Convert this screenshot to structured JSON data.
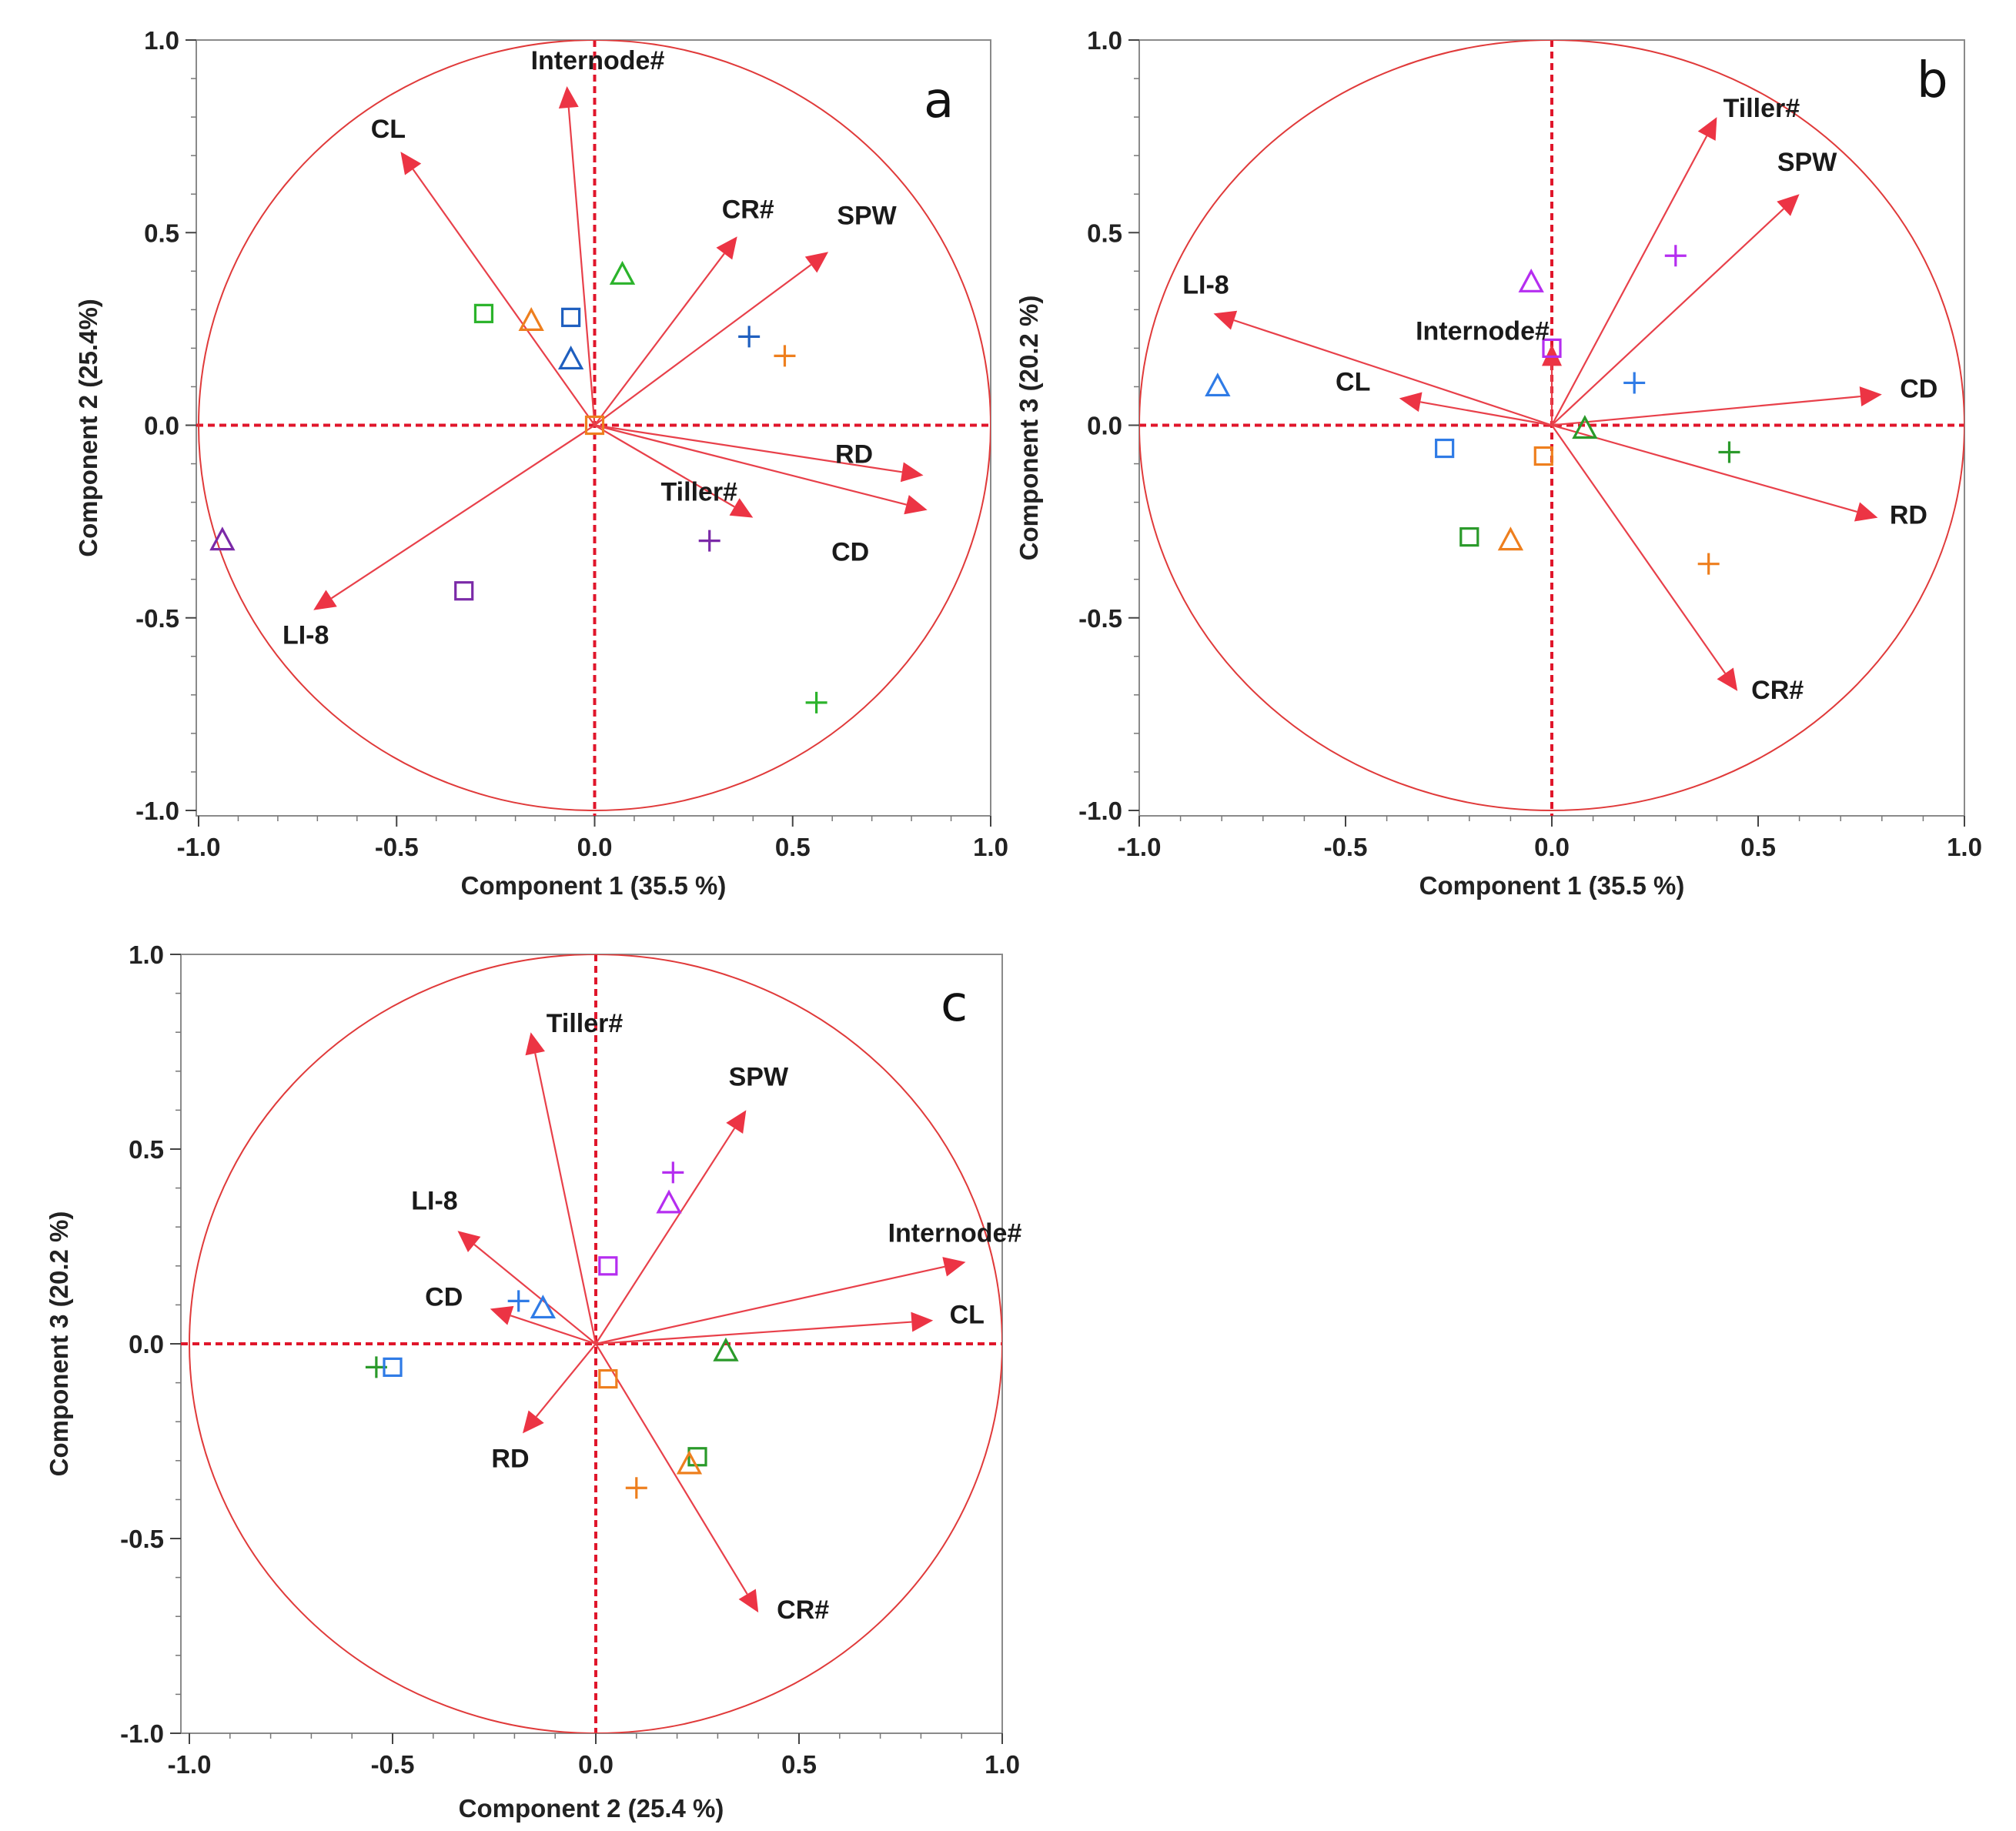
{
  "figure": {
    "panels": [
      {
        "id": "a",
        "letter": "a",
        "xlabel": "Component 1  (35.5 %)",
        "ylabel": "Component 2  (25.4%)",
        "xticks": [
          "-1.0",
          "-0.5",
          "0.0",
          "0.5",
          "1.0"
        ],
        "yticks": [
          "-1.0",
          "-0.5",
          "0.0",
          "0.5",
          "1.0"
        ]
      },
      {
        "id": "b",
        "letter": "b",
        "xlabel": "Component 1  (35.5 %)",
        "ylabel": "Component 3  (20.2 %)",
        "xticks": [
          "-1.0",
          "-0.5",
          "0.0",
          "0.5",
          "1.0"
        ],
        "yticks": [
          "-1.0",
          "-0.5",
          "0.0",
          "0.5",
          "1.0"
        ]
      },
      {
        "id": "c",
        "letter": "c",
        "xlabel": "Component 2  (25.4 %)",
        "ylabel": "Component 3  (20.2 %)",
        "xticks": [
          "-1.0",
          "-0.5",
          "0.0",
          "0.5",
          "1.0"
        ],
        "yticks": [
          "-1.0",
          "-0.5",
          "0.0",
          "0.5",
          "1.0"
        ]
      }
    ]
  },
  "chart_data": [
    {
      "type": "scatter",
      "panel": "a",
      "title": "a",
      "xlabel": "Component 1  (35.5 %)",
      "ylabel": "Component 2  (25.4%)",
      "xlim": [
        -1.0,
        1.0
      ],
      "ylim": [
        -1.0,
        1.0
      ],
      "unit_circle": true,
      "loadings": [
        {
          "label": "Internode#",
          "x": -0.07,
          "y": 0.88
        },
        {
          "label": "CL",
          "x": -0.49,
          "y": 0.71
        },
        {
          "label": "CR#",
          "x": 0.36,
          "y": 0.49
        },
        {
          "label": "SPW",
          "x": 0.59,
          "y": 0.45
        },
        {
          "label": "RD",
          "x": 0.83,
          "y": -0.13
        },
        {
          "label": "CD",
          "x": 0.84,
          "y": -0.22
        },
        {
          "label": "Tiller#",
          "x": 0.4,
          "y": -0.24
        },
        {
          "label": "LI-8",
          "x": -0.71,
          "y": -0.48
        }
      ],
      "scores": [
        {
          "marker": "square",
          "color": "#2bb32b",
          "x": -0.28,
          "y": 0.29
        },
        {
          "marker": "triangle",
          "color": "#ee7f1e",
          "x": -0.16,
          "y": 0.27
        },
        {
          "marker": "square",
          "color": "#1f5fbf",
          "x": -0.06,
          "y": 0.28
        },
        {
          "marker": "triangle",
          "color": "#1f5fbf",
          "x": -0.06,
          "y": 0.17
        },
        {
          "marker": "triangle",
          "color": "#2bb32b",
          "x": 0.07,
          "y": 0.39
        },
        {
          "marker": "square",
          "color": "#ee7f1e",
          "x": 0.0,
          "y": 0.0
        },
        {
          "marker": "plus",
          "color": "#1f5fbf",
          "x": 0.39,
          "y": 0.23
        },
        {
          "marker": "plus",
          "color": "#ee7f1e",
          "x": 0.48,
          "y": 0.18
        },
        {
          "marker": "plus",
          "color": "#7b2aa8",
          "x": 0.29,
          "y": -0.3
        },
        {
          "marker": "square",
          "color": "#7b2aa8",
          "x": -0.33,
          "y": -0.43
        },
        {
          "marker": "triangle",
          "color": "#7b2aa8",
          "x": -0.94,
          "y": -0.3
        },
        {
          "marker": "plus",
          "color": "#2bb32b",
          "x": 0.56,
          "y": -0.72
        }
      ]
    },
    {
      "type": "scatter",
      "panel": "b",
      "title": "b",
      "xlabel": "Component 1  (35.5 %)",
      "ylabel": "Component 3  (20.2 %)",
      "xlim": [
        -1.0,
        1.0
      ],
      "ylim": [
        -1.0,
        1.0
      ],
      "unit_circle": true,
      "loadings": [
        {
          "label": "Tiller#",
          "x": 0.4,
          "y": 0.8
        },
        {
          "label": "SPW",
          "x": 0.6,
          "y": 0.6
        },
        {
          "label": "LI-8",
          "x": -0.82,
          "y": 0.29
        },
        {
          "label": "Internode#",
          "x": 0.0,
          "y": 0.21
        },
        {
          "label": "CL",
          "x": -0.37,
          "y": 0.07
        },
        {
          "label": "CD",
          "x": 0.8,
          "y": 0.08
        },
        {
          "label": "RD",
          "x": 0.79,
          "y": -0.24
        },
        {
          "label": "CR#",
          "x": 0.45,
          "y": -0.69
        }
      ],
      "scores": [
        {
          "marker": "triangle",
          "color": "#b52ef0",
          "x": -0.05,
          "y": 0.37
        },
        {
          "marker": "plus",
          "color": "#b52ef0",
          "x": 0.3,
          "y": 0.44
        },
        {
          "marker": "square",
          "color": "#b52ef0",
          "x": 0.0,
          "y": 0.2
        },
        {
          "marker": "triangle",
          "color": "#2f7be6",
          "x": -0.81,
          "y": 0.1
        },
        {
          "marker": "plus",
          "color": "#2f7be6",
          "x": 0.2,
          "y": 0.11
        },
        {
          "marker": "square",
          "color": "#2f7be6",
          "x": -0.26,
          "y": -0.06
        },
        {
          "marker": "square",
          "color": "#ee7f1e",
          "x": -0.02,
          "y": -0.08
        },
        {
          "marker": "triangle",
          "color": "#2a9a2a",
          "x": 0.08,
          "y": -0.01
        },
        {
          "marker": "plus",
          "color": "#2a9a2a",
          "x": 0.43,
          "y": -0.07
        },
        {
          "marker": "square",
          "color": "#2a9a2a",
          "x": -0.2,
          "y": -0.29
        },
        {
          "marker": "triangle",
          "color": "#ee7f1e",
          "x": -0.1,
          "y": -0.3
        },
        {
          "marker": "plus",
          "color": "#ee7f1e",
          "x": 0.38,
          "y": -0.36
        }
      ]
    },
    {
      "type": "scatter",
      "panel": "c",
      "title": "c",
      "xlabel": "Component 2  (25.4 %)",
      "ylabel": "Component 3  (20.2 %)",
      "xlim": [
        -1.0,
        1.0
      ],
      "ylim": [
        -1.0,
        1.0
      ],
      "unit_circle": true,
      "loadings": [
        {
          "label": "Tiller#",
          "x": -0.16,
          "y": 0.8
        },
        {
          "label": "SPW",
          "x": 0.37,
          "y": 0.6
        },
        {
          "label": "LI-8",
          "x": -0.34,
          "y": 0.29
        },
        {
          "label": "CD",
          "x": -0.26,
          "y": 0.09
        },
        {
          "label": "Internode#",
          "x": 0.91,
          "y": 0.21
        },
        {
          "label": "CL",
          "x": 0.83,
          "y": 0.06
        },
        {
          "label": "RD",
          "x": -0.18,
          "y": -0.23
        },
        {
          "label": "CR#",
          "x": 0.4,
          "y": -0.69
        }
      ],
      "scores": [
        {
          "marker": "plus",
          "color": "#b52ef0",
          "x": 0.19,
          "y": 0.44
        },
        {
          "marker": "triangle",
          "color": "#b52ef0",
          "x": 0.18,
          "y": 0.36
        },
        {
          "marker": "square",
          "color": "#b52ef0",
          "x": 0.03,
          "y": 0.2
        },
        {
          "marker": "plus",
          "color": "#2f7be6",
          "x": -0.19,
          "y": 0.11
        },
        {
          "marker": "triangle",
          "color": "#2f7be6",
          "x": -0.13,
          "y": 0.09
        },
        {
          "marker": "plus",
          "color": "#2a9a2a",
          "x": -0.54,
          "y": -0.06
        },
        {
          "marker": "square",
          "color": "#2f7be6",
          "x": -0.5,
          "y": -0.06
        },
        {
          "marker": "square",
          "color": "#ee7f1e",
          "x": 0.03,
          "y": -0.09
        },
        {
          "marker": "triangle",
          "color": "#2a9a2a",
          "x": 0.32,
          "y": -0.02
        },
        {
          "marker": "square",
          "color": "#2a9a2a",
          "x": 0.25,
          "y": -0.29
        },
        {
          "marker": "triangle",
          "color": "#ee7f1e",
          "x": 0.23,
          "y": -0.31
        },
        {
          "marker": "plus",
          "color": "#ee7f1e",
          "x": 0.1,
          "y": -0.37
        }
      ]
    }
  ]
}
